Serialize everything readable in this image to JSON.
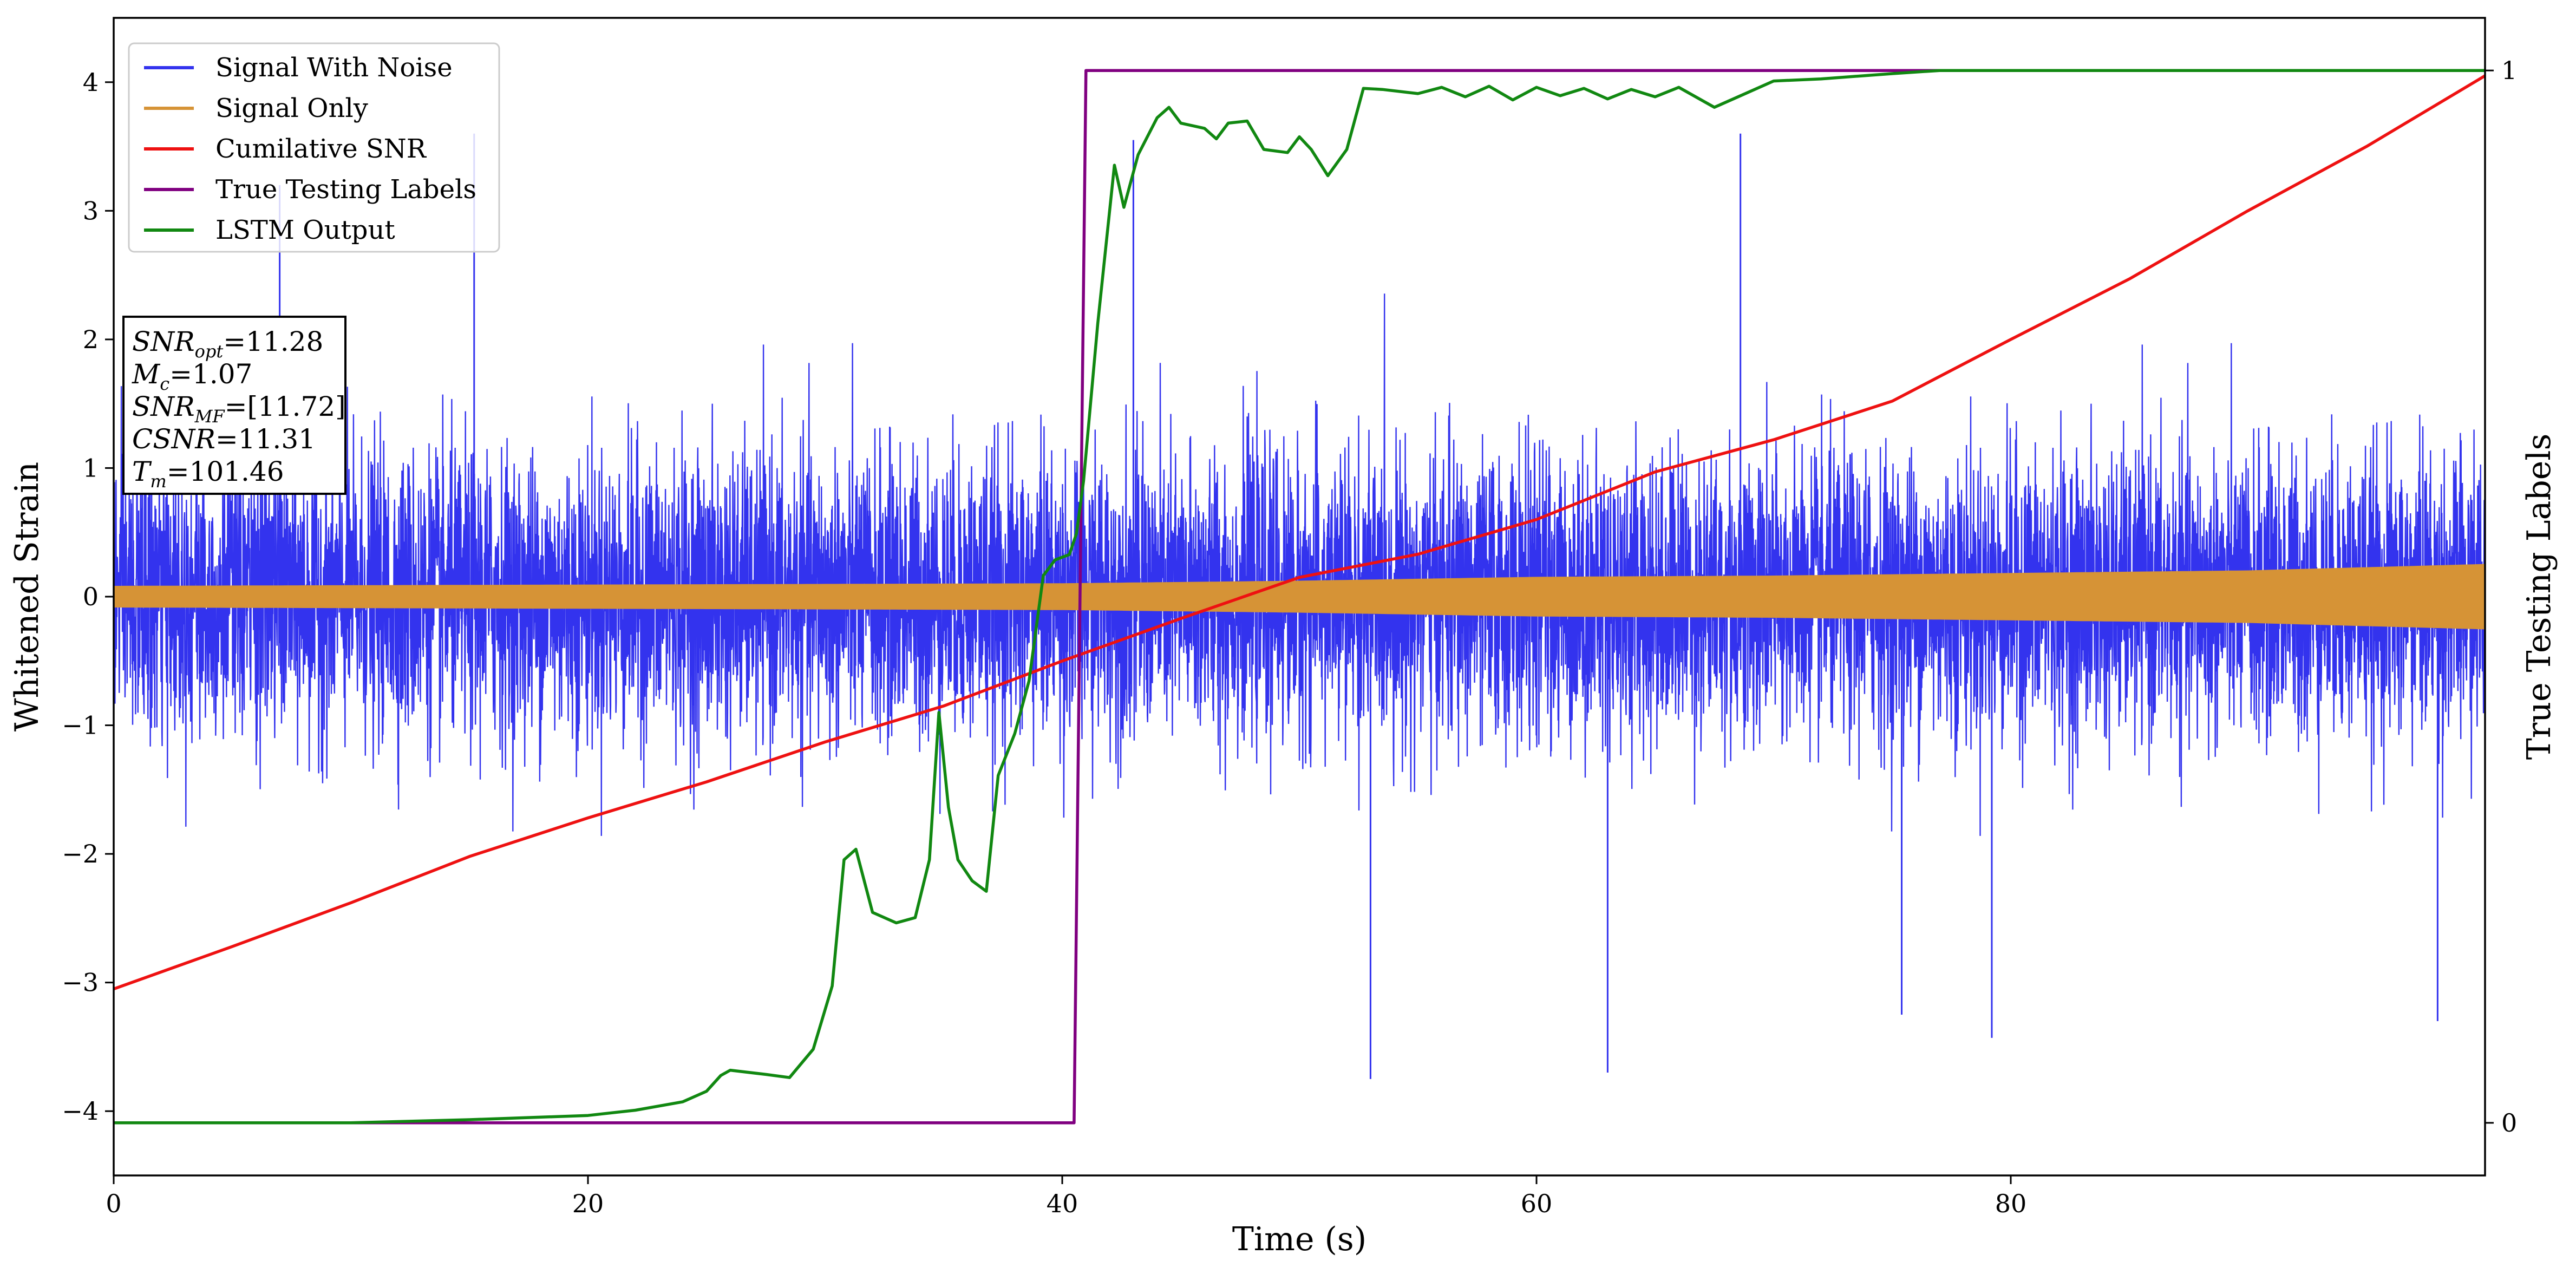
{
  "chart_data": {
    "type": "line",
    "xlabel": "Time (s)",
    "ylabel": "Whitened Strain",
    "y2label": "True Testing Labels",
    "xlim": [
      0,
      100
    ],
    "ylim": [
      -4.5,
      4.5
    ],
    "y2lim": [
      -0.05,
      1.05
    ],
    "x_ticks": [
      0,
      20,
      40,
      60,
      80
    ],
    "y_ticks": [
      -4,
      -3,
      -2,
      -1,
      0,
      1,
      2,
      3,
      4
    ],
    "y2_ticks": [
      0,
      1
    ],
    "x_tick_labels": [
      "0",
      "20",
      "40",
      "60",
      "80"
    ],
    "y_tick_labels": [
      "−4",
      "−3",
      "−2",
      "−1",
      "0",
      "1",
      "2",
      "3",
      "4"
    ],
    "y2_tick_labels": [
      "0",
      "1"
    ],
    "grid": false,
    "legend_placement": "top-left",
    "series": [
      {
        "name": "Signal With Noise",
        "axis": "left",
        "color": "#3333ee",
        "style": "dense noise",
        "typical_range": [
          -1.3,
          1.3
        ],
        "extremes": [
          {
            "x": 7,
            "y": 3.2
          },
          {
            "x": 15.2,
            "y": 3.6
          },
          {
            "x": 43,
            "y": 3.55
          },
          {
            "x": 68.6,
            "y": 3.6
          },
          {
            "x": 53,
            "y": -3.75
          },
          {
            "x": 63,
            "y": -3.7
          },
          {
            "x": 75.4,
            "y": -3.25
          },
          {
            "x": 79.2,
            "y": -3.43
          },
          {
            "x": 98,
            "y": -3.3
          }
        ]
      },
      {
        "name": "Signal Only",
        "axis": "left",
        "color": "#d69336",
        "style": "band",
        "envelope": [
          {
            "x": 0,
            "y": 0.08
          },
          {
            "x": 20,
            "y": 0.09
          },
          {
            "x": 40,
            "y": 0.1
          },
          {
            "x": 50,
            "y": 0.12
          },
          {
            "x": 60,
            "y": 0.15
          },
          {
            "x": 70,
            "y": 0.16
          },
          {
            "x": 80,
            "y": 0.18
          },
          {
            "x": 90,
            "y": 0.2
          },
          {
            "x": 100,
            "y": 0.25
          }
        ]
      },
      {
        "name": "Cumilative SNR",
        "axis": "left",
        "color": "#ee1111",
        "points": [
          {
            "x": 0,
            "y": -3.05
          },
          {
            "x": 5,
            "y": -2.72
          },
          {
            "x": 10,
            "y": -2.38
          },
          {
            "x": 15,
            "y": -2.02
          },
          {
            "x": 20,
            "y": -1.72
          },
          {
            "x": 25,
            "y": -1.44
          },
          {
            "x": 30,
            "y": -1.13
          },
          {
            "x": 35,
            "y": -0.85
          },
          {
            "x": 40,
            "y": -0.5
          },
          {
            "x": 45,
            "y": -0.17
          },
          {
            "x": 50,
            "y": 0.15
          },
          {
            "x": 55,
            "y": 0.33
          },
          {
            "x": 60,
            "y": 0.6
          },
          {
            "x": 65,
            "y": 0.97
          },
          {
            "x": 70,
            "y": 1.22
          },
          {
            "x": 75,
            "y": 1.52
          },
          {
            "x": 80,
            "y": 2.0
          },
          {
            "x": 85,
            "y": 2.47
          },
          {
            "x": 90,
            "y": 3.0
          },
          {
            "x": 95,
            "y": 3.5
          },
          {
            "x": 100,
            "y": 4.05
          }
        ]
      },
      {
        "name": "True Testing Labels",
        "axis": "right",
        "color": "#800080",
        "points": [
          {
            "x": 0,
            "y": 0
          },
          {
            "x": 40.5,
            "y": 0
          },
          {
            "x": 41,
            "y": 1
          },
          {
            "x": 100,
            "y": 1
          }
        ]
      },
      {
        "name": "LSTM Output",
        "axis": "right",
        "color": "#118811",
        "points": [
          {
            "x": 0,
            "y": 0
          },
          {
            "x": 10,
            "y": 0
          },
          {
            "x": 15,
            "y": 0.003
          },
          {
            "x": 20,
            "y": 0.007
          },
          {
            "x": 22,
            "y": 0.012
          },
          {
            "x": 24,
            "y": 0.02
          },
          {
            "x": 25,
            "y": 0.03
          },
          {
            "x": 25.6,
            "y": 0.045
          },
          {
            "x": 26,
            "y": 0.05
          },
          {
            "x": 27.5,
            "y": 0.046
          },
          {
            "x": 28.5,
            "y": 0.043
          },
          {
            "x": 29.5,
            "y": 0.07
          },
          {
            "x": 30.3,
            "y": 0.13
          },
          {
            "x": 30.8,
            "y": 0.25
          },
          {
            "x": 31.3,
            "y": 0.26
          },
          {
            "x": 32,
            "y": 0.2
          },
          {
            "x": 33,
            "y": 0.19
          },
          {
            "x": 33.8,
            "y": 0.195
          },
          {
            "x": 34.4,
            "y": 0.25
          },
          {
            "x": 34.8,
            "y": 0.39
          },
          {
            "x": 35.2,
            "y": 0.3
          },
          {
            "x": 35.6,
            "y": 0.25
          },
          {
            "x": 36.2,
            "y": 0.23
          },
          {
            "x": 36.8,
            "y": 0.22
          },
          {
            "x": 37.3,
            "y": 0.33
          },
          {
            "x": 38,
            "y": 0.37
          },
          {
            "x": 38.6,
            "y": 0.42
          },
          {
            "x": 39.2,
            "y": 0.52
          },
          {
            "x": 39.7,
            "y": 0.535
          },
          {
            "x": 40.3,
            "y": 0.54
          },
          {
            "x": 40.6,
            "y": 0.56
          },
          {
            "x": 40.9,
            "y": 0.61
          },
          {
            "x": 41.5,
            "y": 0.76
          },
          {
            "x": 42.2,
            "y": 0.91
          },
          {
            "x": 42.6,
            "y": 0.87
          },
          {
            "x": 43.2,
            "y": 0.92
          },
          {
            "x": 44,
            "y": 0.955
          },
          {
            "x": 44.5,
            "y": 0.965
          },
          {
            "x": 45,
            "y": 0.95
          },
          {
            "x": 46,
            "y": 0.945
          },
          {
            "x": 46.5,
            "y": 0.935
          },
          {
            "x": 47,
            "y": 0.95
          },
          {
            "x": 47.8,
            "y": 0.952
          },
          {
            "x": 48.5,
            "y": 0.925
          },
          {
            "x": 49.5,
            "y": 0.922
          },
          {
            "x": 50,
            "y": 0.937
          },
          {
            "x": 50.5,
            "y": 0.925
          },
          {
            "x": 51.2,
            "y": 0.9
          },
          {
            "x": 52,
            "y": 0.925
          },
          {
            "x": 52.7,
            "y": 0.983
          },
          {
            "x": 53.5,
            "y": 0.982
          },
          {
            "x": 55,
            "y": 0.978
          },
          {
            "x": 56,
            "y": 0.984
          },
          {
            "x": 57,
            "y": 0.975
          },
          {
            "x": 58,
            "y": 0.985
          },
          {
            "x": 59,
            "y": 0.972
          },
          {
            "x": 60,
            "y": 0.984
          },
          {
            "x": 61,
            "y": 0.976
          },
          {
            "x": 62,
            "y": 0.983
          },
          {
            "x": 63,
            "y": 0.973
          },
          {
            "x": 64,
            "y": 0.982
          },
          {
            "x": 65,
            "y": 0.975
          },
          {
            "x": 66,
            "y": 0.984
          },
          {
            "x": 67.5,
            "y": 0.965
          },
          {
            "x": 68.5,
            "y": 0.975
          },
          {
            "x": 70,
            "y": 0.99
          },
          {
            "x": 72,
            "y": 0.992
          },
          {
            "x": 75,
            "y": 0.997
          },
          {
            "x": 77,
            "y": 1
          },
          {
            "x": 100,
            "y": 1
          }
        ]
      }
    ],
    "annotation": [
      {
        "main": "SNR",
        "sub": "opt",
        "value": "=11.28"
      },
      {
        "main": "M",
        "sub": "c",
        "value": "=1.07"
      },
      {
        "main": "SNR",
        "sub": "MF",
        "value": "=[11.72]"
      },
      {
        "main": "CSNR",
        "sub": "",
        "value": "=11.31"
      },
      {
        "main": "T",
        "sub": "m",
        "value": "=101.46"
      }
    ]
  }
}
